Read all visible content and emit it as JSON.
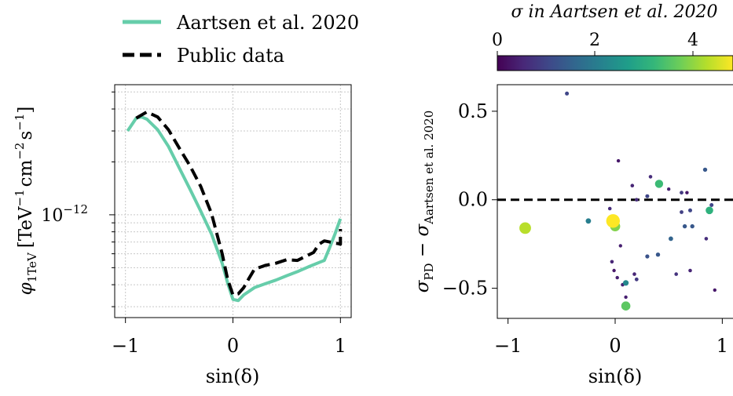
{
  "legend": {
    "entries": [
      {
        "label": "Aartsen et al. 2020",
        "color": "#66cdaa",
        "style": "solid"
      },
      {
        "label": "Public data",
        "color": "#000000",
        "style": "dashed"
      }
    ]
  },
  "colorbar": {
    "label": "σ in Aartsen et al. 2020",
    "ticks": [
      "0",
      "2",
      "4"
    ],
    "range": [
      0,
      4.7
    ],
    "colormap": "viridis",
    "colors": [
      "#440154",
      "#482878",
      "#3e4989",
      "#31688e",
      "#26828e",
      "#1f9e89",
      "#35b779",
      "#6ece58",
      "#b5de2b",
      "#fde725"
    ]
  },
  "chart_data": [
    {
      "type": "line",
      "panel": "left",
      "xlabel": "sin(δ)",
      "ylabel": "φ1TeV [TeV⁻¹ cm⁻² s⁻¹]",
      "ylabel_parts": {
        "sym": "φ",
        "sub": "1TeV",
        "unit": "[TeV",
        "e1": "−1",
        "cm": "cm",
        "e2": "−2",
        "s": "s",
        "e3": "−1",
        "close": "]"
      },
      "xlim": [
        -1.1,
        1.1
      ],
      "ylim": [
        2.6e-13,
        5.5e-12
      ],
      "yscale": "log",
      "grid": true,
      "xticks": [
        -1,
        0,
        1
      ],
      "xtick_labels": [
        "−1",
        "0",
        "1"
      ],
      "ytick_label": {
        "base": "10",
        "exp": "−12",
        "value": 1e-12
      },
      "series": [
        {
          "name": "Aartsen et al. 2020",
          "color": "#66cdaa",
          "dash": "solid",
          "x": [
            -0.98,
            -0.9,
            -0.85,
            -0.8,
            -0.7,
            -0.6,
            -0.5,
            -0.4,
            -0.3,
            -0.2,
            -0.1,
            -0.05,
            0.0,
            0.05,
            0.1,
            0.2,
            0.3,
            0.4,
            0.5,
            0.6,
            0.7,
            0.8,
            0.85,
            0.9,
            0.95,
            1.0
          ],
          "y": [
            3e-12,
            3.55e-12,
            3.6e-12,
            3.5e-12,
            3.05e-12,
            2.45e-12,
            1.85e-12,
            1.4e-12,
            1.05e-12,
            7.8e-13,
            5.3e-13,
            4.1e-13,
            3.3e-13,
            3.25e-13,
            3.5e-13,
            3.85e-13,
            4.05e-13,
            4.25e-13,
            4.5e-13,
            4.75e-13,
            5.05e-13,
            5.35e-13,
            5.5e-13,
            6.5e-13,
            7.8e-13,
            9.5e-13
          ]
        },
        {
          "name": "Public data",
          "color": "#000000",
          "dash": "dashed",
          "x": [
            -0.9,
            -0.8,
            -0.7,
            -0.6,
            -0.5,
            -0.4,
            -0.3,
            -0.2,
            -0.1,
            -0.05,
            0.0,
            0.05,
            0.1,
            0.15,
            0.2,
            0.3,
            0.4,
            0.5,
            0.6,
            0.7,
            0.75,
            0.8,
            0.85,
            0.9,
            0.95,
            0.98,
            1.0,
            1.0
          ],
          "y": [
            3.55e-12,
            3.85e-12,
            3.6e-12,
            3.05e-12,
            2.4e-12,
            1.9e-12,
            1.45e-12,
            1.02e-12,
            6e-13,
            4.3e-13,
            3.5e-13,
            3.55e-13,
            3.85e-13,
            4.35e-13,
            4.9e-13,
            5.15e-13,
            5.3e-13,
            5.55e-13,
            5.5e-13,
            5.9e-13,
            6.1e-13,
            6.8e-13,
            7.1e-13,
            7e-13,
            6.9e-13,
            6.85e-13,
            6.8e-13,
            8.3e-13
          ]
        }
      ]
    },
    {
      "type": "scatter",
      "panel": "right",
      "xlabel": "sin(δ)",
      "ylabel": "σPD − σAartsen et al. 2020",
      "ylabel_parts": {
        "a": "σ",
        "asub": "PD",
        "minus": " − ",
        "b": "σ",
        "bsub": "Aartsen et al. 2020"
      },
      "xlim": [
        -1.1,
        1.1
      ],
      "ylim": [
        -0.67,
        0.65
      ],
      "xticks": [
        -1,
        0,
        1
      ],
      "xtick_labels": [
        "−1",
        "0",
        "1"
      ],
      "yticks": [
        0.5,
        0.0,
        -0.5
      ],
      "ytick_labels": [
        "0.5",
        "0.0",
        "−0.5"
      ],
      "reference_line": {
        "y": 0.0,
        "style": "dashed",
        "color": "#000000"
      },
      "points": [
        {
          "x": -0.84,
          "y": -0.16,
          "sigma": 4.2
        },
        {
          "x": -0.45,
          "y": 0.6,
          "sigma": 1.0
        },
        {
          "x": -0.25,
          "y": -0.12,
          "sigma": 2.0
        },
        {
          "x": -0.02,
          "y": -0.12,
          "sigma": 4.7
        },
        {
          "x": 0.0,
          "y": -0.15,
          "sigma": 3.8
        },
        {
          "x": 0.1,
          "y": -0.6,
          "sigma": 3.5
        },
        {
          "x": 0.1,
          "y": -0.47,
          "sigma": 2.2
        },
        {
          "x": 0.41,
          "y": 0.09,
          "sigma": 3.2
        },
        {
          "x": 0.88,
          "y": -0.06,
          "sigma": 3.0
        },
        {
          "x": 0.84,
          "y": 0.17,
          "sigma": 1.3
        },
        {
          "x": 0.93,
          "y": -0.51,
          "sigma": 0.3
        },
        {
          "x": 0.03,
          "y": 0.22,
          "sigma": 0.3
        },
        {
          "x": -0.05,
          "y": -0.05,
          "sigma": 0.6
        },
        {
          "x": 0.05,
          "y": -0.26,
          "sigma": 0.4
        },
        {
          "x": -0.03,
          "y": -0.35,
          "sigma": 0.5
        },
        {
          "x": -0.01,
          "y": -0.4,
          "sigma": 0.3
        },
        {
          "x": 0.02,
          "y": -0.44,
          "sigma": 0.4
        },
        {
          "x": 0.07,
          "y": -0.48,
          "sigma": 0.5
        },
        {
          "x": 0.1,
          "y": -0.55,
          "sigma": 0.4
        },
        {
          "x": 0.16,
          "y": 0.08,
          "sigma": 0.5
        },
        {
          "x": 0.2,
          "y": 0.0,
          "sigma": 0.6
        },
        {
          "x": 0.2,
          "y": -0.45,
          "sigma": 0.8
        },
        {
          "x": 0.18,
          "y": -0.42,
          "sigma": 0.5
        },
        {
          "x": 0.3,
          "y": 0.02,
          "sigma": 1.0
        },
        {
          "x": 0.33,
          "y": 0.13,
          "sigma": 0.6
        },
        {
          "x": 0.3,
          "y": -0.32,
          "sigma": 1.2
        },
        {
          "x": 0.4,
          "y": -0.31,
          "sigma": 1.3
        },
        {
          "x": 0.5,
          "y": 0.06,
          "sigma": 0.4
        },
        {
          "x": 0.52,
          "y": -0.22,
          "sigma": 1.5
        },
        {
          "x": 0.57,
          "y": -0.42,
          "sigma": 0.7
        },
        {
          "x": 0.62,
          "y": -0.07,
          "sigma": 0.9
        },
        {
          "x": 0.62,
          "y": 0.04,
          "sigma": 0.8
        },
        {
          "x": 0.65,
          "y": -0.15,
          "sigma": 1.3
        },
        {
          "x": 0.67,
          "y": 0.04,
          "sigma": 0.3
        },
        {
          "x": 0.7,
          "y": -0.06,
          "sigma": 1.0
        },
        {
          "x": 0.72,
          "y": -0.15,
          "sigma": 1.3
        },
        {
          "x": 0.7,
          "y": -0.4,
          "sigma": 0.5
        },
        {
          "x": 0.85,
          "y": -0.22,
          "sigma": 0.6
        },
        {
          "x": 0.9,
          "y": -0.03,
          "sigma": 1.0
        }
      ]
    }
  ]
}
